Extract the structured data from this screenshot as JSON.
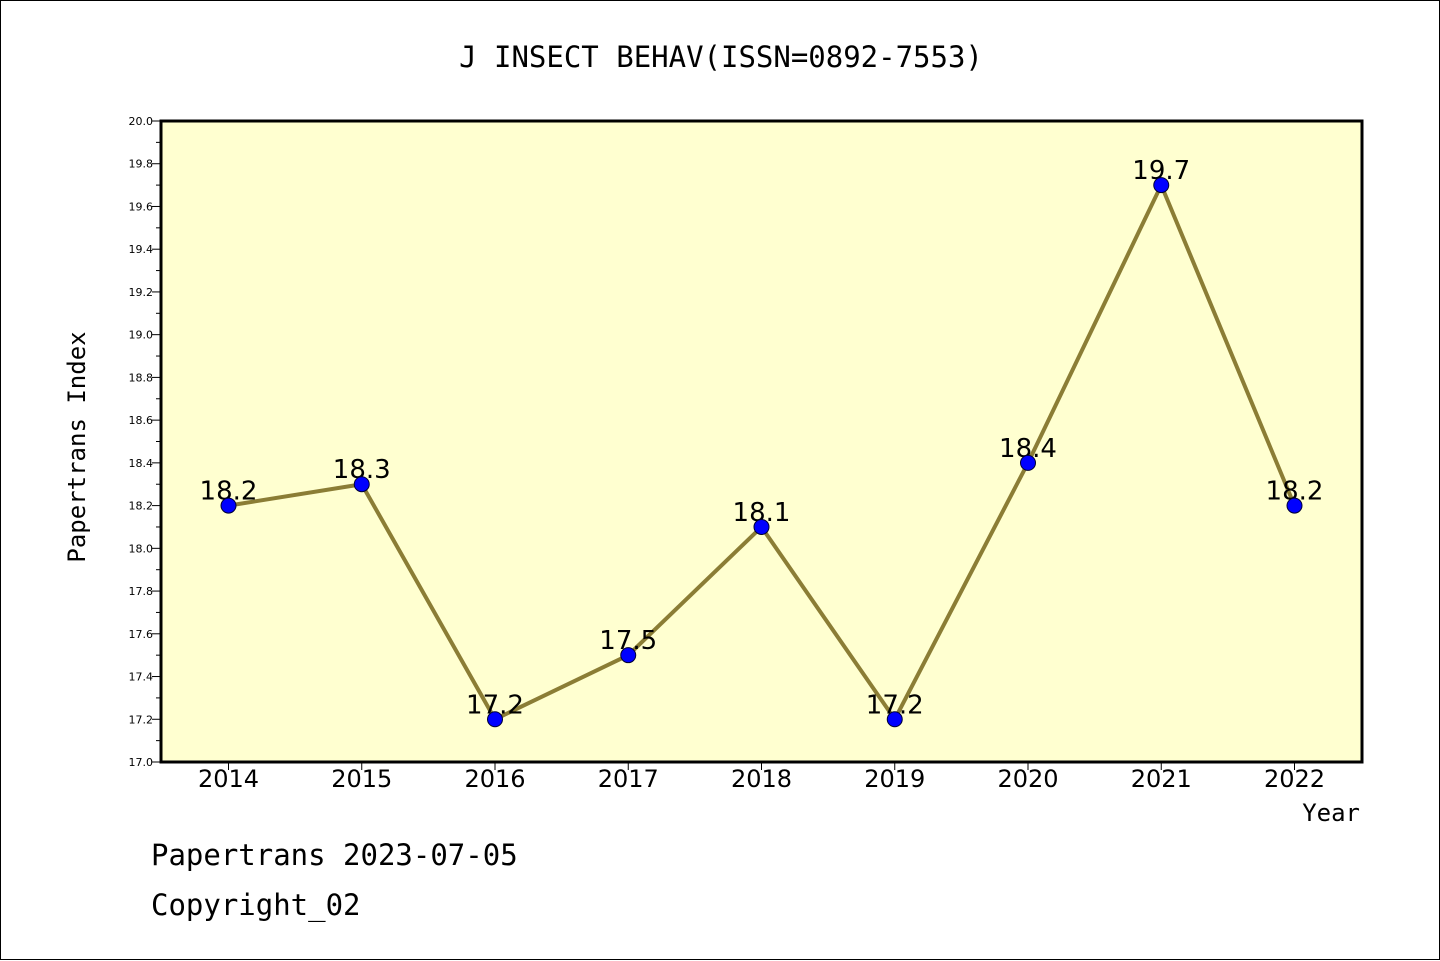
{
  "chart_data": {
    "type": "line",
    "title": "J INSECT BEHAV(ISSN=0892-7553)",
    "xlabel": "Year",
    "ylabel": "Papertrans Index",
    "categories": [
      "2014",
      "2015",
      "2016",
      "2017",
      "2018",
      "2019",
      "2020",
      "2021",
      "2022"
    ],
    "series": [
      {
        "values": [
          18.2,
          18.3,
          17.2,
          17.5,
          18.1,
          17.2,
          18.4,
          19.7,
          18.2
        ],
        "data_labels": [
          "18.2",
          "18.3",
          "17.2",
          "17.5",
          "18.1",
          "17.2",
          "18.4",
          "19.7",
          "18.2"
        ]
      }
    ],
    "ylim": [
      17.0,
      20.0
    ],
    "ytick_labels": [
      "17.0",
      "17.2",
      "17.4",
      "17.6",
      "17.8",
      "18.0",
      "18.2",
      "18.4",
      "18.6",
      "18.8",
      "19.0",
      "19.2",
      "19.4",
      "19.6",
      "19.8",
      "20.0"
    ],
    "grid": false,
    "colors": {
      "plot_background": "#ffffd0",
      "line": "#8b7d35",
      "marker": "#0000ff",
      "axis": "#000000"
    }
  },
  "footer": {
    "line1": "Papertrans 2023-07-05",
    "line2": "Copyright_02"
  }
}
